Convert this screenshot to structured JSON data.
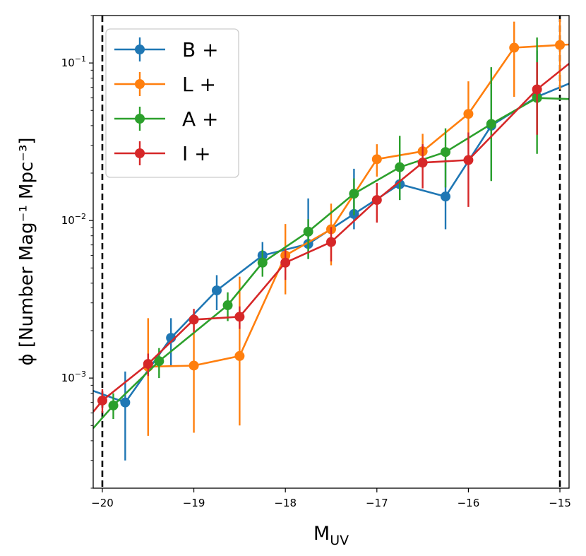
{
  "chart_data": {
    "type": "line",
    "title": "",
    "xlabel": "M",
    "xlabel_sub": "UV",
    "ylabel": "ϕ [Number Mag⁻¹ Mpc⁻³]",
    "xlim": [
      -20.1,
      -14.9
    ],
    "ylim": [
      0.0002,
      0.2
    ],
    "yscale": "log",
    "x_ticks": [
      -20,
      -19,
      -18,
      -17,
      -16,
      -15
    ],
    "x_tick_labels": [
      "−20",
      "−19",
      "−18",
      "−17",
      "−16",
      "−15"
    ],
    "y_ticks": [
      0.001,
      0.01,
      0.1
    ],
    "y_tick_labels": [
      {
        "base": "10",
        "exp": "−3"
      },
      {
        "base": "10",
        "exp": "−2"
      },
      {
        "base": "10",
        "exp": "−1"
      }
    ],
    "vlines": [
      -20.0,
      -15.0
    ],
    "grid": false,
    "legend_position": "upper-left",
    "series": [
      {
        "name": "B +",
        "color": "#1f77b4",
        "x": [
          -19.75,
          -19.25,
          -18.75,
          -18.25,
          -17.75,
          -17.25,
          -16.75,
          -16.25,
          -15.75,
          -15.25
        ],
        "y": [
          0.0007,
          0.0018,
          0.0036,
          0.006,
          0.0071,
          0.011,
          0.017,
          0.0142,
          0.04,
          0.061
        ],
        "yerr_low": [
          0.0003,
          0.0012,
          0.0027,
          0.0049,
          0.0057,
          0.0088,
          0.0135,
          0.0088,
          0.018,
          0.035
        ],
        "yerr_high": [
          0.0011,
          0.0024,
          0.0045,
          0.0073,
          0.0138,
          0.0213,
          0.0222,
          0.0245,
          0.0938,
          0.12
        ],
        "line_x": [
          -20.1,
          -19.75,
          -19.25,
          -18.75,
          -18.25,
          -17.75,
          -17.25,
          -16.75,
          -16.25,
          -15.75,
          -15.25,
          -14.9
        ],
        "line_y": [
          0.00083,
          0.0007,
          0.0018,
          0.0036,
          0.006,
          0.0071,
          0.011,
          0.017,
          0.0142,
          0.04,
          0.061,
          0.074
        ]
      },
      {
        "name": "L +",
        "color": "#ff7f0e",
        "x": [
          -19.5,
          -19.0,
          -18.5,
          -18.0,
          -17.5,
          -17.0,
          -16.5,
          -16.0,
          -15.5,
          -15.0
        ],
        "y": [
          0.00118,
          0.0012,
          0.00138,
          0.006,
          0.0088,
          0.0245,
          0.0275,
          0.0475,
          0.125,
          0.13
        ],
        "yerr_low": [
          0.00043,
          0.00045,
          0.0005,
          0.0034,
          0.0052,
          0.019,
          0.0215,
          0.031,
          0.061,
          0.068
        ],
        "yerr_high": [
          0.0024,
          0.0024,
          0.0044,
          0.0095,
          0.0128,
          0.0305,
          0.0355,
          0.0765,
          0.183,
          0.19
        ],
        "line_x": [
          -19.5,
          -19.0,
          -18.5,
          -18.0,
          -17.5,
          -17.0,
          -16.5,
          -16.0,
          -15.5,
          -15.0,
          -14.9
        ],
        "line_y": [
          0.00118,
          0.0012,
          0.00138,
          0.006,
          0.0088,
          0.0245,
          0.0275,
          0.0475,
          0.125,
          0.13,
          0.131
        ]
      },
      {
        "name": "A +",
        "color": "#2ca02c",
        "x": [
          -19.88,
          -19.38,
          -18.63,
          -18.25,
          -17.75,
          -17.25,
          -16.75,
          -16.25,
          -15.75,
          -15.25
        ],
        "y": [
          0.00067,
          0.00128,
          0.0029,
          0.0054,
          0.0085,
          0.0148,
          0.0218,
          0.0272,
          0.041,
          0.06
        ],
        "yerr_low": [
          0.00055,
          0.001,
          0.0023,
          0.0044,
          0.0057,
          0.0108,
          0.0135,
          0.0162,
          0.0178,
          0.0265
        ],
        "yerr_high": [
          0.0008,
          0.00155,
          0.0035,
          0.0065,
          0.0102,
          0.0185,
          0.0345,
          0.0385,
          0.094,
          0.145
        ],
        "line_x": [
          -20.1,
          -19.88,
          -19.38,
          -18.63,
          -18.25,
          -17.75,
          -17.25,
          -16.75,
          -16.25,
          -15.75,
          -15.25,
          -14.9
        ],
        "line_y": [
          0.00048,
          0.00067,
          0.00128,
          0.0029,
          0.0054,
          0.0085,
          0.0148,
          0.0218,
          0.0272,
          0.041,
          0.06,
          0.059
        ]
      },
      {
        "name": "I +",
        "color": "#d62728",
        "x": [
          -20.0,
          -19.5,
          -19.0,
          -18.5,
          -18.0,
          -17.5,
          -17.0,
          -16.5,
          -16.0,
          -15.25
        ],
        "y": [
          0.00072,
          0.00123,
          0.00235,
          0.00245,
          0.0054,
          0.0073,
          0.0135,
          0.0233,
          0.0242,
          0.068
        ],
        "yerr_low": [
          0.0006,
          0.00103,
          0.00195,
          0.00205,
          0.0042,
          0.0055,
          0.0097,
          0.016,
          0.0122,
          0.035
        ],
        "yerr_high": [
          0.00085,
          0.00143,
          0.00275,
          0.00285,
          0.0066,
          0.0091,
          0.0173,
          0.0305,
          0.0362,
          0.101
        ],
        "line_x": [
          -20.1,
          -20.0,
          -19.5,
          -19.0,
          -18.5,
          -18.0,
          -17.5,
          -17.0,
          -16.5,
          -16.0,
          -15.25,
          -14.9
        ],
        "line_y": [
          0.00061,
          0.00072,
          0.00123,
          0.00235,
          0.00245,
          0.0054,
          0.0073,
          0.0135,
          0.0233,
          0.0242,
          0.068,
          0.099
        ]
      }
    ]
  }
}
